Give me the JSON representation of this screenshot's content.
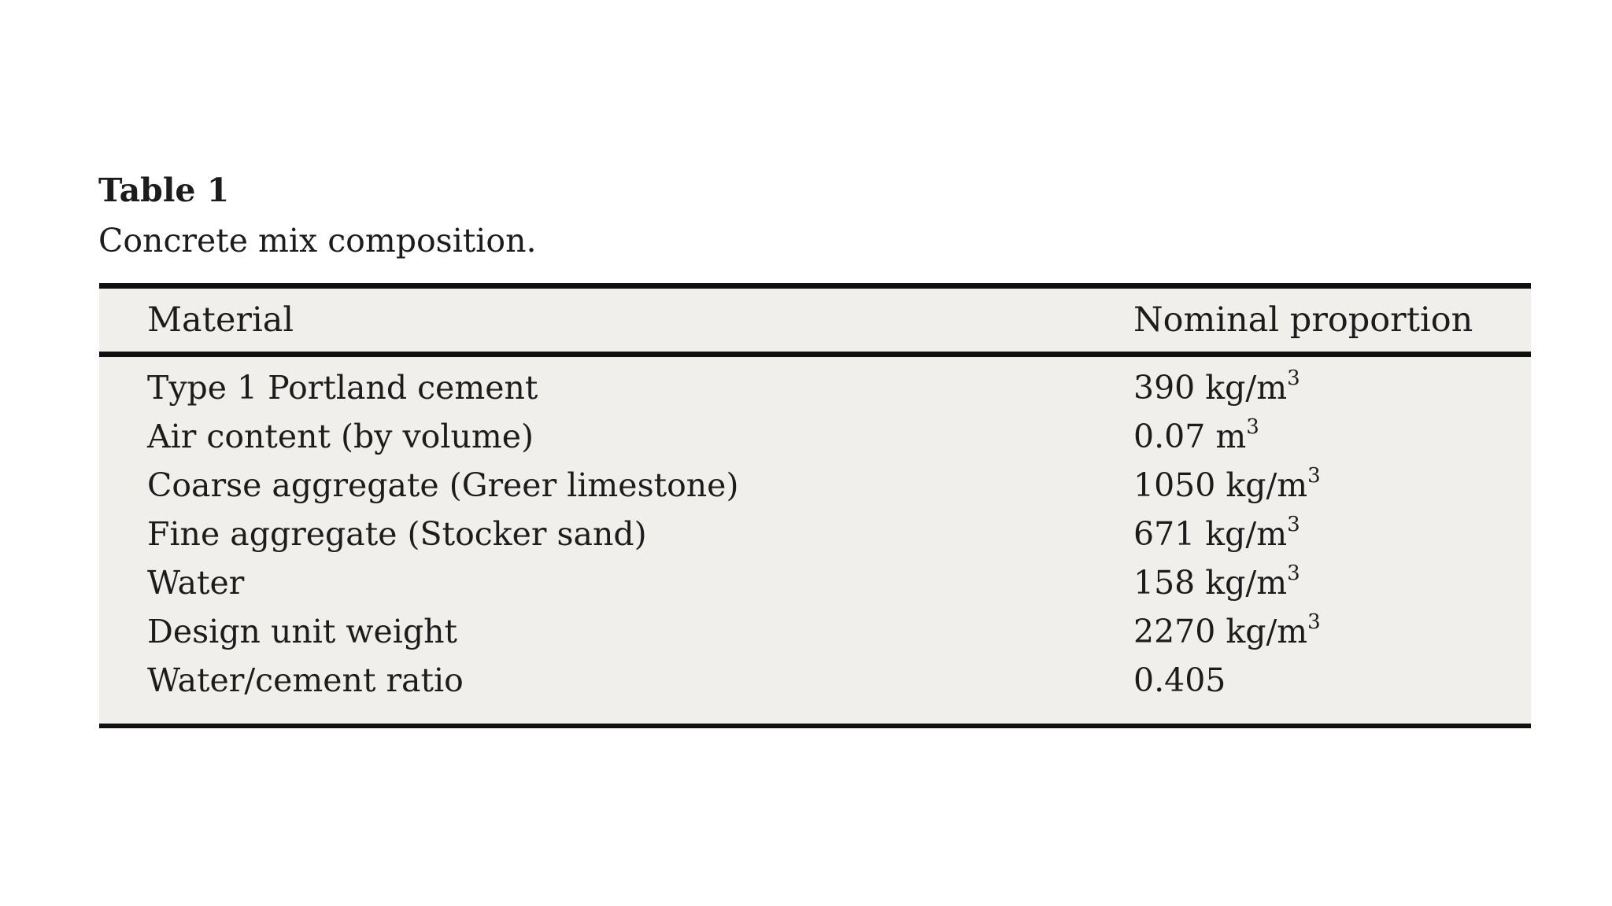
{
  "caption": {
    "label": "Table 1",
    "title": "Concrete mix composition."
  },
  "table": {
    "background_color": "#f0efec",
    "rule_color": "#101010",
    "text_color": "#1c1c1c",
    "columns": [
      "Material",
      "Nominal proportion"
    ],
    "rows": [
      {
        "material": "Type 1 Portland cement",
        "value": "390 kg/m",
        "sup": "3"
      },
      {
        "material": "Air content (by volume)",
        "value": "0.07 m",
        "sup": "3"
      },
      {
        "material": "Coarse aggregate (Greer limestone)",
        "value": "1050 kg/m",
        "sup": "3"
      },
      {
        "material": "Fine aggregate (Stocker sand)",
        "value": "671 kg/m",
        "sup": "3"
      },
      {
        "material": "Water",
        "value": "158 kg/m",
        "sup": "3"
      },
      {
        "material": "Design unit weight",
        "value": "2270 kg/m",
        "sup": "3"
      },
      {
        "material": "Water/cement ratio",
        "value": "0.405",
        "sup": ""
      }
    ]
  },
  "chart_data": {
    "type": "table",
    "title": "Table 1. Concrete mix composition.",
    "columns": [
      "Material",
      "Nominal proportion"
    ],
    "rows": [
      [
        "Type 1 Portland cement",
        "390 kg/m^3"
      ],
      [
        "Air content (by volume)",
        "0.07 m^3"
      ],
      [
        "Coarse aggregate (Greer limestone)",
        "1050 kg/m^3"
      ],
      [
        "Fine aggregate (Stocker sand)",
        "671 kg/m^3"
      ],
      [
        "Water",
        "158 kg/m^3"
      ],
      [
        "Design unit weight",
        "2270 kg/m^3"
      ],
      [
        "Water/cement ratio",
        "0.405"
      ]
    ]
  }
}
